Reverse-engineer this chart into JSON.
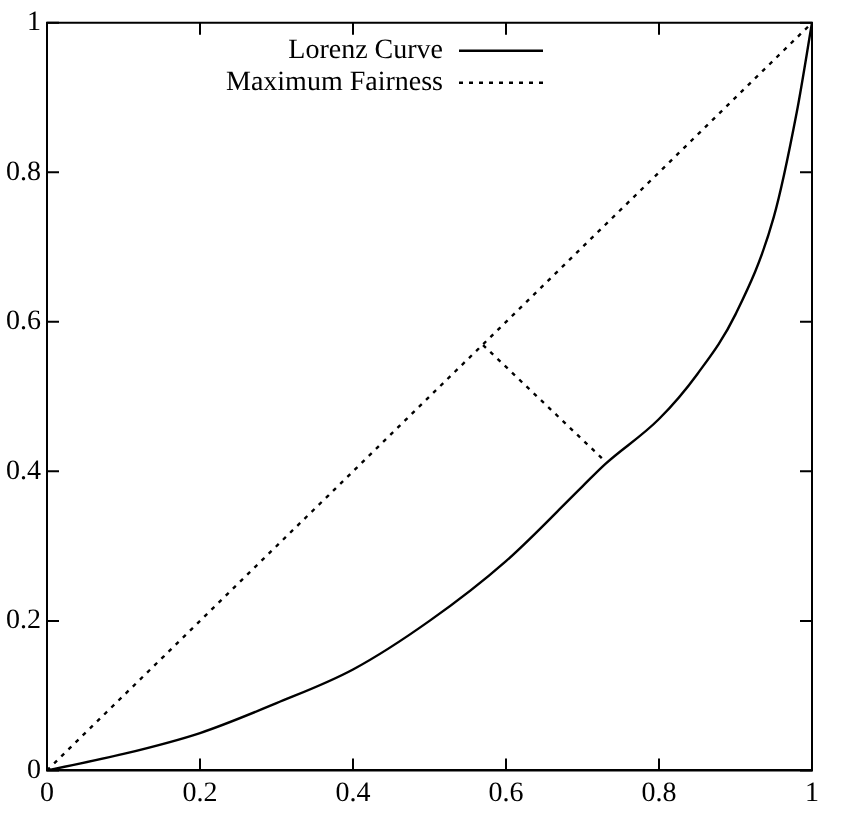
{
  "chart_data": {
    "type": "line",
    "x": [
      0,
      0.1,
      0.2,
      0.3,
      0.4,
      0.5,
      0.6,
      0.7,
      0.73,
      0.8,
      0.85,
      0.9,
      0.95,
      0.98,
      1
    ],
    "series": [
      {
        "name": "Lorenz Curve",
        "color": "#000000",
        "line_style": "solid",
        "values": [
          0,
          0.022,
          0.05,
          0.09,
          0.135,
          0.2,
          0.28,
          0.38,
          0.41,
          0.47,
          0.53,
          0.61,
          0.74,
          0.88,
          1
        ]
      },
      {
        "name": "Maximum Fairness",
        "color": "#000000",
        "line_style": "dotted",
        "x": [
          0,
          1
        ],
        "values": [
          0,
          1
        ]
      },
      {
        "color": "#000000",
        "line_style": "dotted",
        "x": [
          0.57,
          0.728
        ],
        "values": [
          0.569,
          0.415
        ]
      }
    ],
    "xlim": [
      0,
      1
    ],
    "ylim": [
      0,
      1
    ],
    "xticks": [
      0,
      0.2,
      0.4,
      0.6,
      0.8,
      1
    ],
    "yticks": [
      0,
      0.2,
      0.4,
      0.6,
      0.8,
      1
    ],
    "grid": false,
    "legend": "top left",
    "marker": "none"
  }
}
